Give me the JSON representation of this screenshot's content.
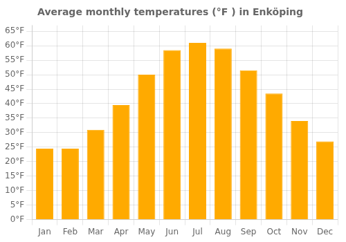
{
  "chart_data": {
    "type": "bar",
    "title": "Average monthly temperatures (°F ) in Enköping",
    "categories": [
      "Jan",
      "Feb",
      "Mar",
      "Apr",
      "May",
      "Jun",
      "Jul",
      "Aug",
      "Sep",
      "Oct",
      "Nov",
      "Dec"
    ],
    "values": [
      24.5,
      24.5,
      31,
      39.5,
      50,
      58.5,
      61,
      59,
      51.5,
      43.5,
      34,
      27
    ],
    "color": "#FFAA00",
    "ylim": [
      0,
      67
    ],
    "yticks": [
      {
        "value": 0,
        "label": "0°F"
      },
      {
        "value": 5,
        "label": "5°F"
      },
      {
        "value": 10,
        "label": "10°F"
      },
      {
        "value": 15,
        "label": "15°F"
      },
      {
        "value": 20,
        "label": "20°F"
      },
      {
        "value": 25,
        "label": "25°F"
      },
      {
        "value": 30,
        "label": "30°F"
      },
      {
        "value": 35,
        "label": "35°F"
      },
      {
        "value": 40,
        "label": "40°F"
      },
      {
        "value": 45,
        "label": "45°F"
      },
      {
        "value": 50,
        "label": "50°F"
      },
      {
        "value": 55,
        "label": "55°F"
      },
      {
        "value": 60,
        "label": "60°F"
      },
      {
        "value": 65,
        "label": "65°F"
      }
    ],
    "grid": true
  }
}
